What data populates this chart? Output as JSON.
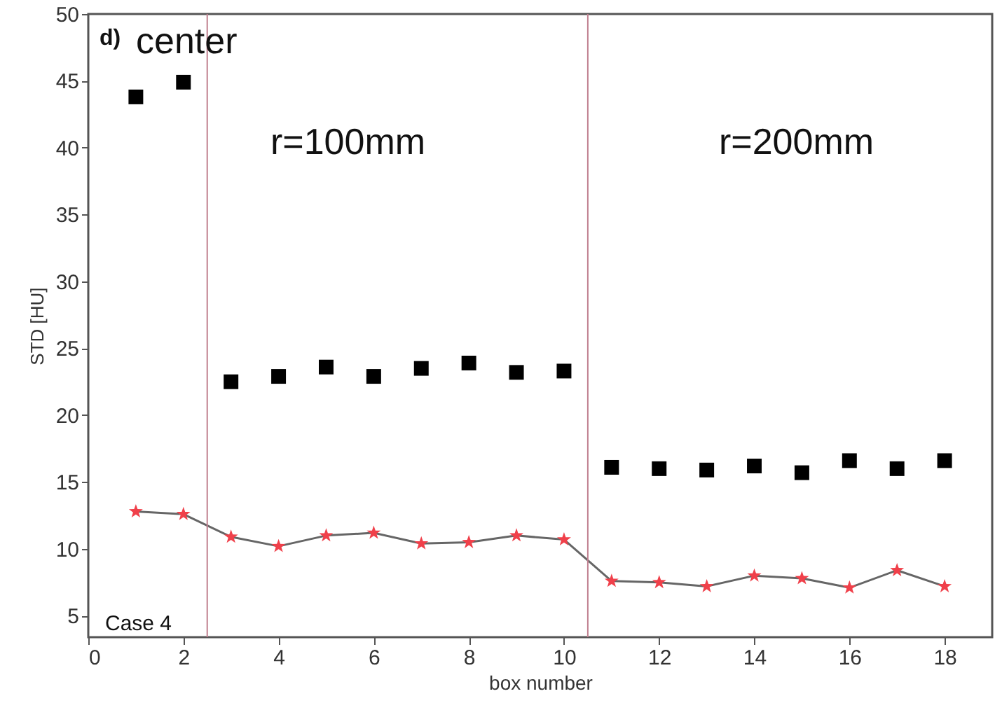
{
  "chart_data": {
    "type": "scatter",
    "xlabel": "box number",
    "ylabel": "STD [HU]",
    "x": [
      1,
      2,
      3,
      4,
      5,
      6,
      7,
      8,
      9,
      10,
      11,
      12,
      13,
      14,
      15,
      16,
      17,
      18
    ],
    "series": [
      {
        "marker": "square",
        "color": "#000000",
        "values": [
          43.8,
          44.9,
          22.5,
          22.9,
          23.6,
          22.9,
          23.5,
          23.9,
          23.2,
          23.3,
          16.1,
          16.0,
          15.9,
          16.2,
          15.7,
          16.6,
          16.0,
          16.6
        ]
      },
      {
        "type": "line",
        "marker": "star",
        "color": "#f0404a",
        "values": [
          12.8,
          12.6,
          10.9,
          10.2,
          11.0,
          11.2,
          10.4,
          10.5,
          11.0,
          10.7,
          7.6,
          7.5,
          7.2,
          8.0,
          7.8,
          7.1,
          8.4,
          7.2
        ]
      }
    ],
    "xlim": [
      0,
      19
    ],
    "xticks": [
      0,
      2,
      4,
      6,
      8,
      10,
      12,
      14,
      16,
      18
    ],
    "ylim": [
      3.4,
      50
    ],
    "yticks": [
      5,
      10,
      15,
      20,
      25,
      30,
      35,
      40,
      45,
      50
    ],
    "grid": false,
    "ref_lines": [
      {
        "axis": "x",
        "value": 2.5,
        "color": "#c08090"
      },
      {
        "axis": "x",
        "value": 10.5,
        "color": "#c08090"
      }
    ],
    "annotations": [
      "d)",
      "center",
      "r=100mm",
      "r=200mm",
      "Case 4"
    ]
  }
}
